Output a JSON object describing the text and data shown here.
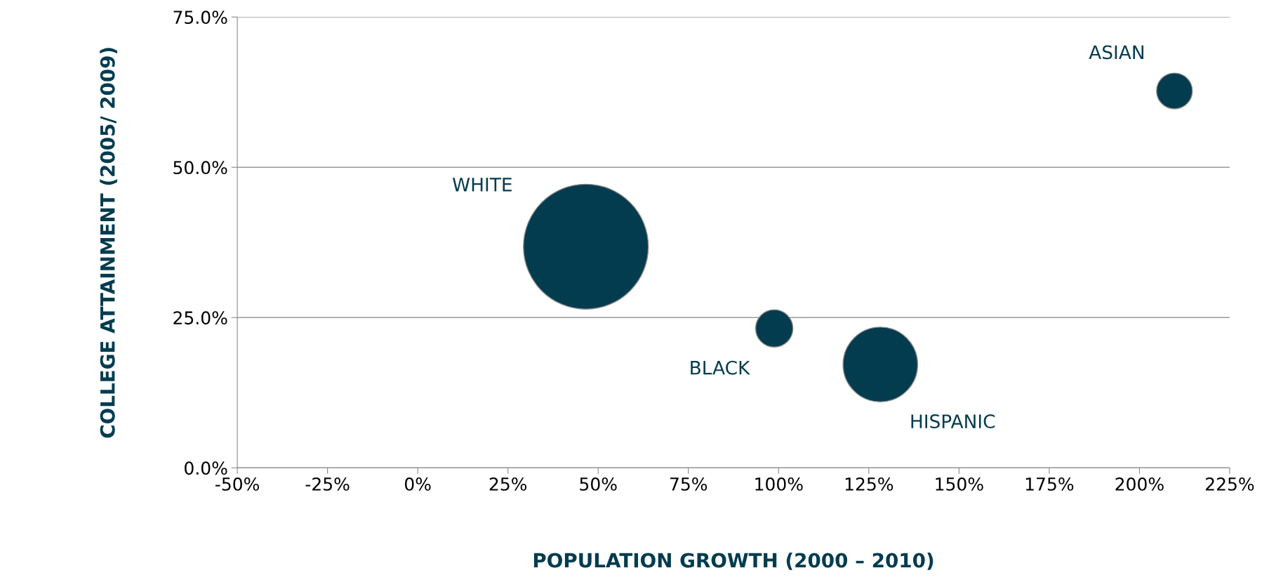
{
  "chart_data": {
    "type": "bubble",
    "xlabel": "POPULATION GROWTH (2000 – 2010)",
    "ylabel": "COLLEGE ATTAINMENT (2005/ 2009)",
    "xlim": [
      -50,
      225
    ],
    "xticks": [
      {
        "value": -50,
        "label": "-50%"
      },
      {
        "value": -25,
        "label": "-25%"
      },
      {
        "value": 0,
        "label": "0%"
      },
      {
        "value": 25,
        "label": "25%"
      },
      {
        "value": 50,
        "label": "50%"
      },
      {
        "value": 75,
        "label": "75%"
      },
      {
        "value": 100,
        "label": "100%"
      },
      {
        "value": 125,
        "label": "125%"
      },
      {
        "value": 150,
        "label": "150%"
      },
      {
        "value": 175,
        "label": "175%"
      },
      {
        "value": 200,
        "label": "200%"
      },
      {
        "value": 225,
        "label": "225%"
      }
    ],
    "ylim": [
      0,
      75
    ],
    "yticks": [
      {
        "value": 0,
        "label": "0.0%"
      },
      {
        "value": 25,
        "label": "25.0%"
      },
      {
        "value": 50,
        "label": "50.0%"
      },
      {
        "value": 75,
        "label": "75.0%"
      }
    ],
    "grid": "y",
    "legend": false,
    "series": [
      {
        "name": "WHITE",
        "color": "#033c4f",
        "x": [
          46.6
        ],
        "values": [
          36.8
        ],
        "sizes": [
          1
        ]
      },
      {
        "name": "BLACK",
        "color": "#033c4f",
        "x": [
          98.8
        ],
        "values": [
          23.2
        ],
        "sizes": [
          0.089
        ]
      },
      {
        "name": "HISPANIC",
        "color": "#033c4f",
        "x": [
          128.2
        ],
        "values": [
          17.2
        ],
        "sizes": [
          0.357
        ]
      },
      {
        "name": "ASIAN",
        "color": "#033c4f",
        "x": [
          209.7
        ],
        "values": [
          62.7
        ],
        "sizes": [
          0.082
        ]
      }
    ]
  }
}
